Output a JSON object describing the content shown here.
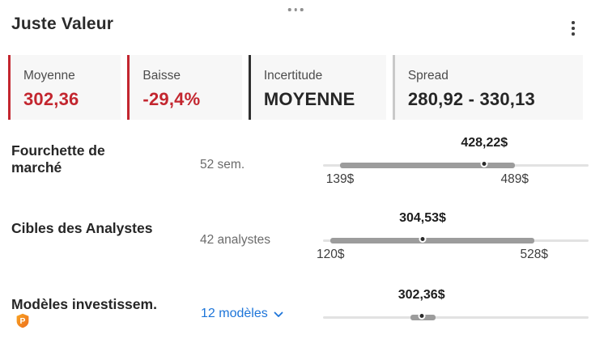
{
  "header": {
    "title": "Juste Valeur",
    "icons": {
      "drag_handle": "three-dots-horizontal",
      "menu": "three-dots-vertical"
    }
  },
  "colors": {
    "negative_red": "#c3262f",
    "dark": "#262626",
    "near_black_border": "#2f2f2f",
    "gray_border": "#c9c9c9",
    "box_bg": "#f7f7f7",
    "link_blue": "#1c74d9",
    "track": "#e2e2e2",
    "range": "#9c9c9c",
    "dot": "#2b2b2b",
    "pro_orange": "#f6871f"
  },
  "stats": [
    {
      "label": "Moyenne",
      "value": "302,36",
      "border_color": "#c3262f",
      "value_color": "#c3262f"
    },
    {
      "label": "Baisse",
      "value": "-29,4%",
      "border_color": "#c3262f",
      "value_color": "#c3262f"
    },
    {
      "label": "Incertitude",
      "value": "MOYENNE",
      "border_color": "#2f2f2f",
      "value_color": "#262626"
    },
    {
      "label": "Spread",
      "value": "280,92 - 330,13",
      "border_color": "#c9c9c9",
      "value_color": "#262626"
    }
  ],
  "scale": {
    "min": 105,
    "max": 637
  },
  "rows": [
    {
      "title": "Fourchette de marché",
      "subtitle": "52 sem.",
      "value": 428.22,
      "value_label": "428,22$",
      "range_min": 139,
      "range_max": 489,
      "range_min_label": "139$",
      "range_max_label": "489$",
      "has_pro_badge": false,
      "has_dropdown": false
    },
    {
      "title": "Cibles des Analystes",
      "subtitle": "42 analystes",
      "value": 304.53,
      "value_label": "304,53$",
      "range_min": 120,
      "range_max": 528,
      "range_min_label": "120$",
      "range_max_label": "528$",
      "has_pro_badge": false,
      "has_dropdown": false
    },
    {
      "title": "Modèles investissem.",
      "subtitle": "12 modèles",
      "value": 302.36,
      "value_label": "302,36$",
      "range_min": 280.92,
      "range_max": 330.13,
      "range_min_label": null,
      "range_max_label": null,
      "has_pro_badge": true,
      "has_dropdown": true
    }
  ]
}
